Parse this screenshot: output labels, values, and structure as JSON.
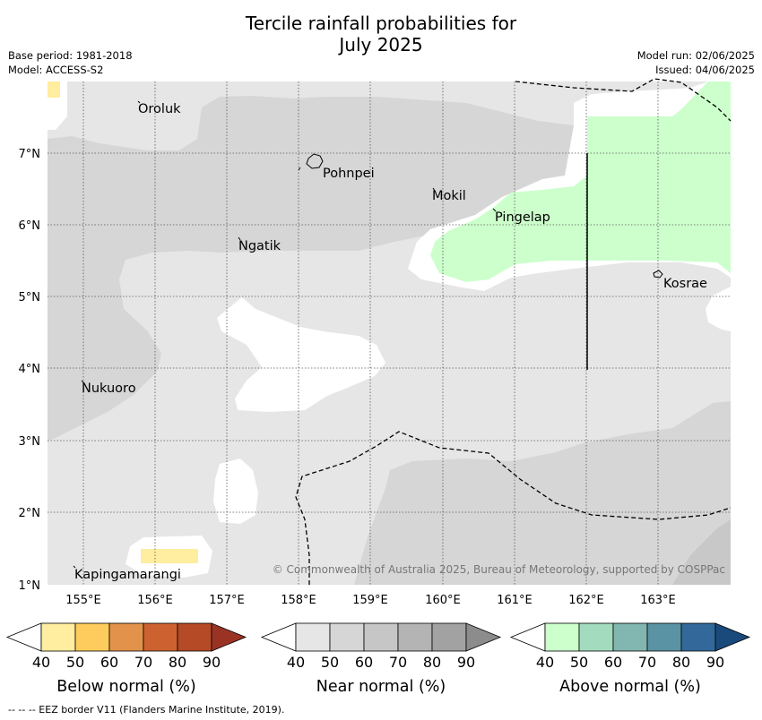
{
  "title_line1": "Tercile rainfall probabilities for",
  "title_line2": "July 2025",
  "base_period": "Base period: 1981-2018",
  "model": "Model: ACCESS-S2",
  "model_run": "Model run: 02/06/2025",
  "issued": "Issued: 04/06/2025",
  "lon_labels": [
    "155°E",
    "156°E",
    "157°E",
    "158°E",
    "159°E",
    "160°E",
    "161°E",
    "162°E",
    "163°E"
  ],
  "lat_labels": [
    "7°N",
    "6°N",
    "5°N",
    "4°N",
    "3°N",
    "2°N",
    "1°N"
  ],
  "places": [
    "Oroluk",
    "Pohnpei",
    "Mokil",
    "Pingelap",
    "Ngatik",
    "Kosrae",
    "Nukuoro",
    "Kapingamarangi"
  ],
  "copyright": "© Commonwealth of Australia 2025, Bureau of Meteorology, supported by COSPPac",
  "legends": [
    {
      "label": "Below normal (%)",
      "ticks": [
        "40",
        "50",
        "60",
        "70",
        "80",
        "90"
      ],
      "colors": [
        "#ffeda0",
        "#fecc5c",
        "#e3924b",
        "#cd6230",
        "#b54a27",
        "#9a3324"
      ]
    },
    {
      "label": "Near normal (%)",
      "ticks": [
        "40",
        "50",
        "60",
        "70",
        "80",
        "90"
      ],
      "colors": [
        "#e6e6e6",
        "#d6d6d6",
        "#c6c6c6",
        "#b4b4b4",
        "#a2a2a2",
        "#8c8c8c"
      ]
    },
    {
      "label": "Above normal (%)",
      "ticks": [
        "40",
        "50",
        "60",
        "70",
        "80",
        "90"
      ],
      "colors": [
        "#ccffcc",
        "#a3dbbe",
        "#82b6b0",
        "#5a93a3",
        "#33699a",
        "#1a4a7c"
      ]
    }
  ],
  "footer": "--  --  -- EEZ border V11 (Flanders Marine Institute, 2019)."
}
